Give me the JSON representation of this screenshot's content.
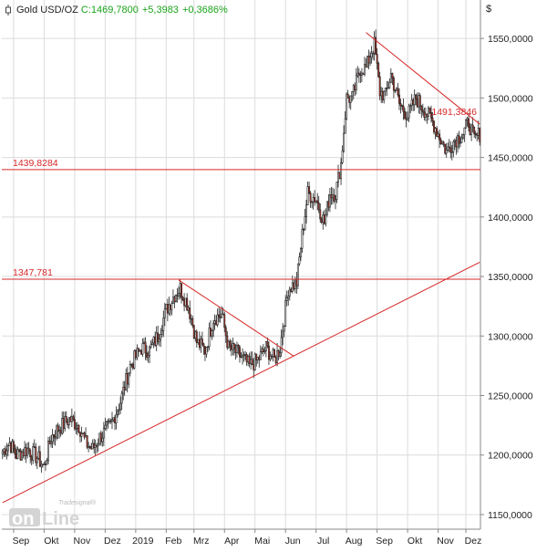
{
  "header": {
    "symbol": "Gold USD/OZ",
    "close_label": "C:",
    "close_value": "1469,7800",
    "change": "+5,3983",
    "change_pct": "+0,3686%",
    "change_color": "#1aa31a"
  },
  "currency_symbol": "$",
  "logo": {
    "tagline": "Tradesignal®",
    "word_left": "on",
    "word_right": "Line"
  },
  "colors": {
    "up_candle": "#ffffff",
    "down_candle": "#c0392b",
    "wick": "#222222",
    "annotation": "#d62728",
    "grid": "#dcdcdc",
    "axis": "#888888"
  },
  "chart_data": {
    "type": "candlestick",
    "title": "Gold USD/OZ",
    "y_axis_side": "right",
    "ylim": [
      1140,
      1580
    ],
    "y_ticks": [
      "1150,0000",
      "1200,0000",
      "1250,0000",
      "1300,0000",
      "1350,0000",
      "1400,0000",
      "1450,0000",
      "1500,0000",
      "1550,0000"
    ],
    "y_tick_values": [
      1150,
      1200,
      1250,
      1300,
      1350,
      1400,
      1450,
      1500,
      1550
    ],
    "x_labels": [
      "Sep",
      "Okt",
      "Nov",
      "Dez",
      "2019",
      "Feb",
      "Mrz",
      "Apr",
      "Mai",
      "Jun",
      "Jul",
      "Aug",
      "Sep",
      "Okt",
      "Nov",
      "Dez"
    ],
    "x_label_index": [
      8,
      30,
      52,
      74,
      96,
      118,
      138,
      160,
      182,
      204,
      226,
      248,
      270,
      292,
      314,
      334
    ],
    "bar_count": 345,
    "price_path": [
      [
        0,
        1203
      ],
      [
        5,
        1210
      ],
      [
        10,
        1200
      ],
      [
        18,
        1205
      ],
      [
        25,
        1198
      ],
      [
        30,
        1190
      ],
      [
        35,
        1215
      ],
      [
        40,
        1222
      ],
      [
        48,
        1230
      ],
      [
        55,
        1225
      ],
      [
        60,
        1210
      ],
      [
        65,
        1205
      ],
      [
        70,
        1215
      ],
      [
        78,
        1225
      ],
      [
        85,
        1245
      ],
      [
        92,
        1275
      ],
      [
        100,
        1290
      ],
      [
        106,
        1288
      ],
      [
        112,
        1300
      ],
      [
        118,
        1322
      ],
      [
        124,
        1335
      ],
      [
        128,
        1340
      ],
      [
        134,
        1325
      ],
      [
        140,
        1295
      ],
      [
        146,
        1288
      ],
      [
        152,
        1315
      ],
      [
        158,
        1318
      ],
      [
        163,
        1290
      ],
      [
        170,
        1285
      ],
      [
        178,
        1275
      ],
      [
        184,
        1280
      ],
      [
        190,
        1290
      ],
      [
        196,
        1280
      ],
      [
        200,
        1290
      ],
      [
        206,
        1340
      ],
      [
        212,
        1345
      ],
      [
        216,
        1385
      ],
      [
        220,
        1420
      ],
      [
        226,
        1415
      ],
      [
        232,
        1395
      ],
      [
        236,
        1420
      ],
      [
        240,
        1420
      ],
      [
        244,
        1445
      ],
      [
        248,
        1500
      ],
      [
        252,
        1500
      ],
      [
        258,
        1525
      ],
      [
        262,
        1525
      ],
      [
        266,
        1540
      ],
      [
        268,
        1545
      ],
      [
        272,
        1505
      ],
      [
        276,
        1502
      ],
      [
        280,
        1520
      ],
      [
        286,
        1495
      ],
      [
        292,
        1485
      ],
      [
        298,
        1500
      ],
      [
        304,
        1490
      ],
      [
        310,
        1480
      ],
      [
        314,
        1470
      ],
      [
        320,
        1455
      ],
      [
        326,
        1465
      ],
      [
        332,
        1470
      ],
      [
        336,
        1480
      ],
      [
        340,
        1465
      ],
      [
        344,
        1470
      ]
    ],
    "horizontal_levels": [
      {
        "value": 1439.8284,
        "label": "1439,8284"
      },
      {
        "value": 1347.781,
        "label": "1347,781"
      }
    ],
    "trendlines": [
      {
        "from": [
          0,
          1160
        ],
        "to": [
          345,
          1362
        ]
      },
      {
        "from": [
          127,
          1347
        ],
        "to": [
          210,
          1283
        ]
      },
      {
        "from": [
          262,
          1555
        ],
        "to": [
          345,
          1478
        ],
        "label": "1491,3846"
      }
    ],
    "legend": "none",
    "grid": true
  }
}
